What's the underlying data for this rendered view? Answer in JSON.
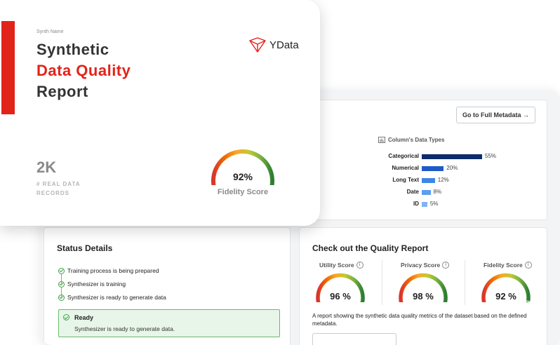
{
  "card": {
    "synth_name_label": "Synth Name",
    "title_line1": "Synthetic",
    "title_line2": "Data Quality",
    "title_line3": "Report",
    "logo_text": "YData",
    "records_value": "2K",
    "records_label": "# REAL DATA RECORDS",
    "fidelity_value": "92%",
    "fidelity_value_fraction": 0.92,
    "fidelity_label": "Fidelity Score"
  },
  "metadata": {
    "button_label": "Go to Full Metadata →",
    "chart_title": "Column's Data Types",
    "chart_data": {
      "type": "bar",
      "title": "Column's Data Types",
      "categories": [
        "Categorical",
        "Numerical",
        "Long Text",
        "Date",
        "ID"
      ],
      "values": [
        55,
        20,
        12,
        8,
        5
      ],
      "value_labels": [
        "55%",
        "20%",
        "12%",
        "8%",
        "5%"
      ],
      "colors": [
        "#0d2c6c",
        "#1e5bc6",
        "#3d86e8",
        "#5b9ef0",
        "#7fb3f5"
      ],
      "unit": "%"
    }
  },
  "status": {
    "title": "Status Details",
    "steps": [
      "Training process is being prepared",
      "Synthesizer is training",
      "Synthesizer is ready to generate data"
    ],
    "ready_title": "Ready",
    "ready_desc": "Synthesizer is ready to generate data."
  },
  "quality": {
    "title": "Check out the Quality Report",
    "scores": [
      {
        "label": "Utility Score",
        "value": "96 %",
        "fraction": 0.96
      },
      {
        "label": "Privacy Score",
        "value": "98 %",
        "fraction": 0.98
      },
      {
        "label": "Fidelity Score",
        "value": "92 %",
        "fraction": 0.92
      }
    ],
    "description": "A report showing the synthetic data quality metrics of the dataset based on the defined metadata."
  },
  "colors": {
    "accent_red": "#e2231a",
    "ready_green": "#43a047"
  }
}
